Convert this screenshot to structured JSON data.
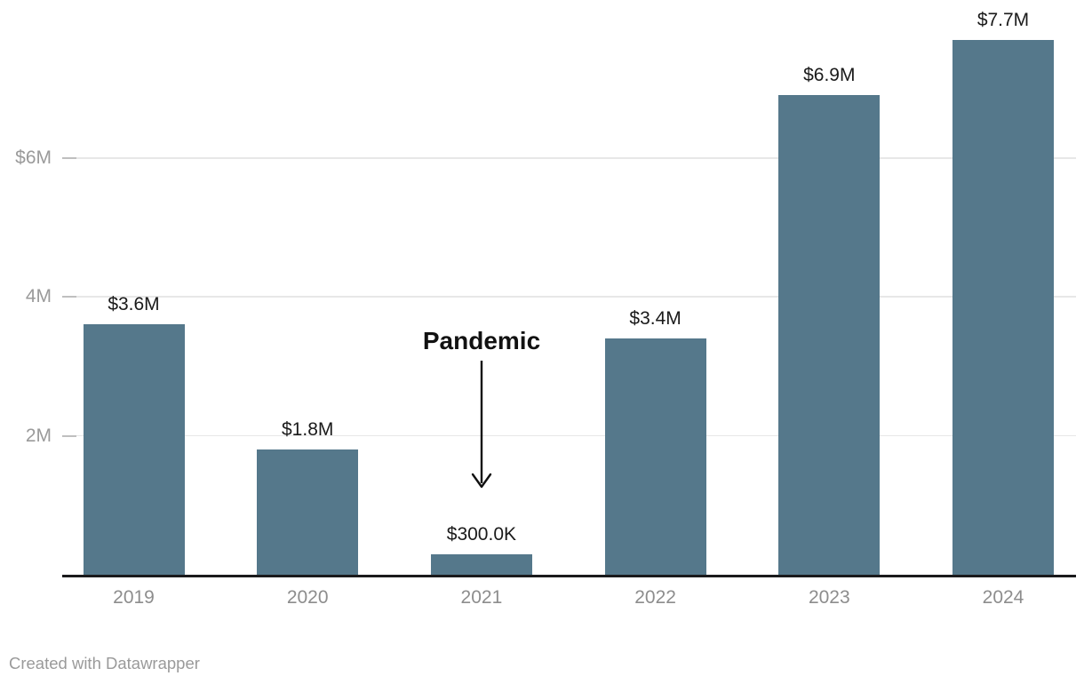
{
  "chart_data": {
    "type": "bar",
    "title": "",
    "categories": [
      "2019",
      "2020",
      "2021",
      "2022",
      "2023",
      "2024"
    ],
    "values": [
      3600000,
      1800000,
      300000,
      3400000,
      6900000,
      7700000
    ],
    "value_labels": [
      "$3.6M",
      "$1.8M",
      "$300.0K",
      "$3.4M",
      "$6.9M",
      "$7.7M"
    ],
    "y_axis": {
      "ticks": [
        {
          "value": 2000000,
          "label": "2M"
        },
        {
          "value": 4000000,
          "label": "4M"
        },
        {
          "value": 6000000,
          "label": "$6M"
        }
      ],
      "range": [
        0,
        8300000
      ],
      "grid": true
    },
    "x_axis": {
      "labels": [
        "2019",
        "2020",
        "2021",
        "2022",
        "2023",
        "2024"
      ]
    },
    "legend": null,
    "annotation": {
      "text": "Pandemic",
      "target_category": "2021",
      "arrow": "down"
    },
    "colors": {
      "bar": "#55788B",
      "grid": "#e7e7e7",
      "tick": "#bfbfbf",
      "axis_line": "#1a1a1c",
      "value_label": "#1a1a1a",
      "y_axis_label": "#9a9a9a",
      "x_axis_label": "#8d8d8d",
      "annotation": "#111111",
      "attribution": "#9a9a9a"
    }
  },
  "footer": {
    "attribution": "Created with Datawrapper"
  }
}
